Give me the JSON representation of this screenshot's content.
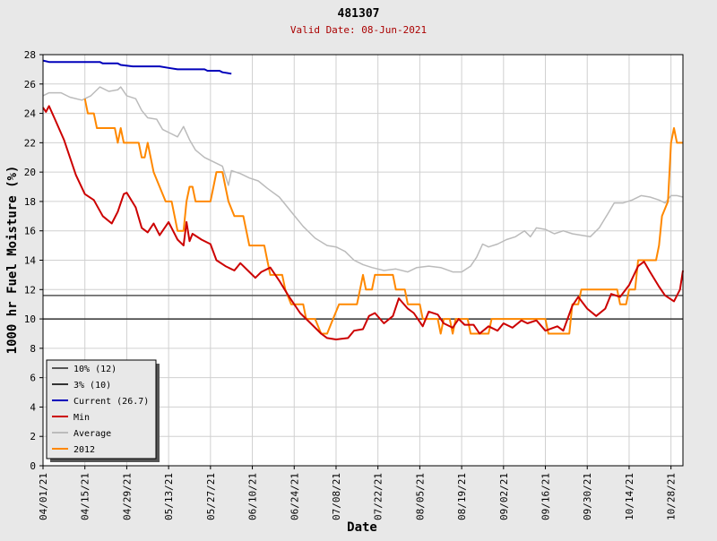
{
  "chart_data": {
    "type": "line",
    "title": "481307",
    "subtitle": "Valid Date: 08-Jun-2021",
    "xlabel": "Date",
    "ylabel": "1000 hr Fuel Moisture (%)",
    "x_tick_labels": [
      "04/01/21",
      "04/15/21",
      "04/29/21",
      "05/13/21",
      "05/27/21",
      "06/10/21",
      "06/24/21",
      "07/08/21",
      "07/22/21",
      "08/05/21",
      "08/19/21",
      "09/02/21",
      "09/16/21",
      "09/30/21",
      "10/14/21",
      "10/28/21"
    ],
    "y_ticks": [
      0,
      2,
      4,
      6,
      8,
      10,
      12,
      14,
      16,
      18,
      20,
      22,
      24,
      26,
      28
    ],
    "ylim": [
      0,
      28
    ],
    "x_range_dates": [
      "04/01/21",
      "11/01/21"
    ],
    "grid": true,
    "legend_position": "bottom-left",
    "reference_lines": [
      {
        "name": "10% (12)",
        "value": 11.6,
        "color": "#555555"
      },
      {
        "name": "3% (10)",
        "value": 10.0,
        "color": "#333333"
      }
    ],
    "series": [
      {
        "name": "Current (26.7)",
        "color": "#0000bb",
        "points": [
          [
            "04/01/21",
            27.6
          ],
          [
            "04/03/21",
            27.5
          ],
          [
            "04/20/21",
            27.5
          ],
          [
            "04/21/21",
            27.4
          ],
          [
            "04/26/21",
            27.4
          ],
          [
            "04/27/21",
            27.3
          ],
          [
            "05/01/21",
            27.2
          ],
          [
            "05/10/21",
            27.2
          ],
          [
            "05/13/21",
            27.1
          ],
          [
            "05/16/21",
            27.0
          ],
          [
            "05/25/21",
            27.0
          ],
          [
            "05/26/21",
            26.9
          ],
          [
            "05/30/21",
            26.9
          ],
          [
            "05/31/21",
            26.8
          ],
          [
            "06/03/21",
            26.7
          ]
        ]
      },
      {
        "name": "Min",
        "color": "#cc0000",
        "points": [
          [
            "04/01/21",
            24.4
          ],
          [
            "04/02/21",
            24.1
          ],
          [
            "04/03/21",
            24.5
          ],
          [
            "04/05/21",
            23.6
          ],
          [
            "04/08/21",
            22.2
          ],
          [
            "04/12/21",
            19.8
          ],
          [
            "04/15/21",
            18.5
          ],
          [
            "04/18/21",
            18.1
          ],
          [
            "04/21/21",
            17.0
          ],
          [
            "04/24/21",
            16.5
          ],
          [
            "04/26/21",
            17.3
          ],
          [
            "04/28/21",
            18.5
          ],
          [
            "04/29/21",
            18.6
          ],
          [
            "05/02/21",
            17.6
          ],
          [
            "05/04/21",
            16.2
          ],
          [
            "05/06/21",
            15.9
          ],
          [
            "05/08/21",
            16.5
          ],
          [
            "05/10/21",
            15.7
          ],
          [
            "05/13/21",
            16.6
          ],
          [
            "05/16/21",
            15.4
          ],
          [
            "05/18/21",
            15.0
          ],
          [
            "05/19/21",
            16.6
          ],
          [
            "05/20/21",
            15.3
          ],
          [
            "05/21/21",
            15.8
          ],
          [
            "05/24/21",
            15.4
          ],
          [
            "05/27/21",
            15.1
          ],
          [
            "05/29/21",
            14.0
          ],
          [
            "06/01/21",
            13.6
          ],
          [
            "06/04/21",
            13.3
          ],
          [
            "06/06/21",
            13.8
          ],
          [
            "06/09/21",
            13.2
          ],
          [
            "06/11/21",
            12.8
          ],
          [
            "06/13/21",
            13.2
          ],
          [
            "06/16/21",
            13.5
          ],
          [
            "06/19/21",
            12.6
          ],
          [
            "06/22/21",
            11.6
          ],
          [
            "06/26/21",
            10.4
          ],
          [
            "06/30/21",
            9.6
          ],
          [
            "07/03/21",
            9.0
          ],
          [
            "07/05/21",
            8.7
          ],
          [
            "07/08/21",
            8.6
          ],
          [
            "07/12/21",
            8.7
          ],
          [
            "07/14/21",
            9.2
          ],
          [
            "07/17/21",
            9.3
          ],
          [
            "07/19/21",
            10.2
          ],
          [
            "07/21/21",
            10.4
          ],
          [
            "07/24/21",
            9.7
          ],
          [
            "07/27/21",
            10.2
          ],
          [
            "07/29/21",
            11.4
          ],
          [
            "08/01/21",
            10.7
          ],
          [
            "08/03/21",
            10.4
          ],
          [
            "08/06/21",
            9.5
          ],
          [
            "08/08/21",
            10.5
          ],
          [
            "08/11/21",
            10.3
          ],
          [
            "08/13/21",
            9.7
          ],
          [
            "08/16/21",
            9.4
          ],
          [
            "08/18/21",
            10.0
          ],
          [
            "08/20/21",
            9.6
          ],
          [
            "08/23/21",
            9.6
          ],
          [
            "08/25/21",
            9.0
          ],
          [
            "08/28/21",
            9.5
          ],
          [
            "08/31/21",
            9.2
          ],
          [
            "09/02/21",
            9.7
          ],
          [
            "09/05/21",
            9.4
          ],
          [
            "09/08/21",
            9.9
          ],
          [
            "09/10/21",
            9.7
          ],
          [
            "09/13/21",
            9.9
          ],
          [
            "09/16/21",
            9.2
          ],
          [
            "09/20/21",
            9.5
          ],
          [
            "09/22/21",
            9.2
          ],
          [
            "09/25/21",
            10.9
          ],
          [
            "09/27/21",
            11.5
          ],
          [
            "09/30/21",
            10.7
          ],
          [
            "10/03/21",
            10.2
          ],
          [
            "10/06/21",
            10.7
          ],
          [
            "10/08/21",
            11.7
          ],
          [
            "10/11/21",
            11.5
          ],
          [
            "10/14/21",
            12.3
          ],
          [
            "10/17/21",
            13.6
          ],
          [
            "10/19/21",
            13.9
          ],
          [
            "10/21/21",
            13.2
          ],
          [
            "10/24/21",
            12.2
          ],
          [
            "10/26/21",
            11.6
          ],
          [
            "10/29/21",
            11.2
          ],
          [
            "10/31/21",
            12.0
          ],
          [
            "11/01/21",
            13.3
          ]
        ]
      },
      {
        "name": "Average",
        "color": "#bbbbbb",
        "points": [
          [
            "04/01/21",
            25.2
          ],
          [
            "04/03/21",
            25.4
          ],
          [
            "04/07/21",
            25.4
          ],
          [
            "04/10/21",
            25.1
          ],
          [
            "04/14/21",
            24.9
          ],
          [
            "04/17/21",
            25.2
          ],
          [
            "04/20/21",
            25.8
          ],
          [
            "04/23/21",
            25.5
          ],
          [
            "04/26/21",
            25.6
          ],
          [
            "04/27/21",
            25.8
          ],
          [
            "04/29/21",
            25.2
          ],
          [
            "05/02/21",
            25.0
          ],
          [
            "05/04/21",
            24.2
          ],
          [
            "05/06/21",
            23.7
          ],
          [
            "05/09/21",
            23.6
          ],
          [
            "05/11/21",
            22.9
          ],
          [
            "05/14/21",
            22.6
          ],
          [
            "05/16/21",
            22.4
          ],
          [
            "05/18/21",
            23.1
          ],
          [
            "05/20/21",
            22.2
          ],
          [
            "05/22/21",
            21.5
          ],
          [
            "05/25/21",
            21.0
          ],
          [
            "05/28/21",
            20.7
          ],
          [
            "05/31/21",
            20.4
          ],
          [
            "06/02/21",
            19.1
          ],
          [
            "06/03/21",
            20.1
          ],
          [
            "06/06/21",
            19.9
          ],
          [
            "06/09/21",
            19.6
          ],
          [
            "06/12/21",
            19.4
          ],
          [
            "06/15/21",
            18.9
          ],
          [
            "06/19/21",
            18.3
          ],
          [
            "06/23/21",
            17.3
          ],
          [
            "06/27/21",
            16.3
          ],
          [
            "07/01/21",
            15.5
          ],
          [
            "07/05/21",
            15.0
          ],
          [
            "07/08/21",
            14.9
          ],
          [
            "07/11/21",
            14.6
          ],
          [
            "07/14/21",
            14.0
          ],
          [
            "07/17/21",
            13.7
          ],
          [
            "07/20/21",
            13.5
          ],
          [
            "07/24/21",
            13.3
          ],
          [
            "07/28/21",
            13.4
          ],
          [
            "08/01/21",
            13.2
          ],
          [
            "08/04/21",
            13.5
          ],
          [
            "08/08/21",
            13.6
          ],
          [
            "08/12/21",
            13.5
          ],
          [
            "08/16/21",
            13.2
          ],
          [
            "08/19/21",
            13.2
          ],
          [
            "08/22/21",
            13.6
          ],
          [
            "08/24/21",
            14.2
          ],
          [
            "08/26/21",
            15.1
          ],
          [
            "08/28/21",
            14.9
          ],
          [
            "08/31/21",
            15.1
          ],
          [
            "09/03/21",
            15.4
          ],
          [
            "09/06/21",
            15.6
          ],
          [
            "09/09/21",
            16.0
          ],
          [
            "09/11/21",
            15.6
          ],
          [
            "09/13/21",
            16.2
          ],
          [
            "09/16/21",
            16.1
          ],
          [
            "09/19/21",
            15.8
          ],
          [
            "09/22/21",
            16.0
          ],
          [
            "09/25/21",
            15.8
          ],
          [
            "09/28/21",
            15.7
          ],
          [
            "10/01/21",
            15.6
          ],
          [
            "10/04/21",
            16.2
          ],
          [
            "10/07/21",
            17.2
          ],
          [
            "10/09/21",
            17.9
          ],
          [
            "10/12/21",
            17.9
          ],
          [
            "10/15/21",
            18.1
          ],
          [
            "10/18/21",
            18.4
          ],
          [
            "10/21/21",
            18.3
          ],
          [
            "10/24/21",
            18.1
          ],
          [
            "10/26/21",
            17.9
          ],
          [
            "10/28/21",
            18.4
          ],
          [
            "10/30/21",
            18.4
          ],
          [
            "11/01/21",
            18.3
          ]
        ]
      },
      {
        "name": "2012",
        "color": "#ff8800",
        "points": [
          [
            "04/15/21",
            25.0
          ],
          [
            "04/16/21",
            24.0
          ],
          [
            "04/18/21",
            24.0
          ],
          [
            "04/19/21",
            23.0
          ],
          [
            "04/25/21",
            23.0
          ],
          [
            "04/26/21",
            22.0
          ],
          [
            "04/27/21",
            23.0
          ],
          [
            "04/28/21",
            22.0
          ],
          [
            "05/03/21",
            22.0
          ],
          [
            "05/04/21",
            21.0
          ],
          [
            "05/05/21",
            21.0
          ],
          [
            "05/06/21",
            22.0
          ],
          [
            "05/07/21",
            21.0
          ],
          [
            "05/08/21",
            20.0
          ],
          [
            "05/10/21",
            19.0
          ],
          [
            "05/12/21",
            18.0
          ],
          [
            "05/14/21",
            18.0
          ],
          [
            "05/15/21",
            17.0
          ],
          [
            "05/16/21",
            16.0
          ],
          [
            "05/18/21",
            16.0
          ],
          [
            "05/19/21",
            18.0
          ],
          [
            "05/20/21",
            19.0
          ],
          [
            "05/21/21",
            19.0
          ],
          [
            "05/22/21",
            18.0
          ],
          [
            "05/27/21",
            18.0
          ],
          [
            "05/28/21",
            19.0
          ],
          [
            "05/29/21",
            20.0
          ],
          [
            "05/31/21",
            20.0
          ],
          [
            "06/01/21",
            19.0
          ],
          [
            "06/02/21",
            18.0
          ],
          [
            "06/04/21",
            17.0
          ],
          [
            "06/07/21",
            17.0
          ],
          [
            "06/09/21",
            15.0
          ],
          [
            "06/14/21",
            15.0
          ],
          [
            "06/15/21",
            14.0
          ],
          [
            "06/16/21",
            13.0
          ],
          [
            "06/20/21",
            13.0
          ],
          [
            "06/21/21",
            12.0
          ],
          [
            "06/23/21",
            11.0
          ],
          [
            "06/27/21",
            11.0
          ],
          [
            "06/28/21",
            10.0
          ],
          [
            "07/01/21",
            10.0
          ],
          [
            "07/03/21",
            9.0
          ],
          [
            "07/05/21",
            9.0
          ],
          [
            "07/07/21",
            10.0
          ],
          [
            "07/09/21",
            11.0
          ],
          [
            "07/15/21",
            11.0
          ],
          [
            "07/16/21",
            12.0
          ],
          [
            "07/17/21",
            13.0
          ],
          [
            "07/18/21",
            12.0
          ],
          [
            "07/20/21",
            12.0
          ],
          [
            "07/21/21",
            13.0
          ],
          [
            "07/27/21",
            13.0
          ],
          [
            "07/28/21",
            12.0
          ],
          [
            "07/31/21",
            12.0
          ],
          [
            "08/01/21",
            11.0
          ],
          [
            "08/05/21",
            11.0
          ],
          [
            "08/06/21",
            10.0
          ],
          [
            "08/11/21",
            10.0
          ],
          [
            "08/12/21",
            9.0
          ],
          [
            "08/13/21",
            10.0
          ],
          [
            "08/15/21",
            10.0
          ],
          [
            "08/16/21",
            9.0
          ],
          [
            "08/17/21",
            10.0
          ],
          [
            "08/21/21",
            10.0
          ],
          [
            "08/22/21",
            9.0
          ],
          [
            "08/28/21",
            9.0
          ],
          [
            "08/29/21",
            10.0
          ],
          [
            "09/16/21",
            10.0
          ],
          [
            "09/17/21",
            9.0
          ],
          [
            "09/24/21",
            9.0
          ],
          [
            "09/25/21",
            11.0
          ],
          [
            "09/27/21",
            11.0
          ],
          [
            "09/28/21",
            12.0
          ],
          [
            "10/10/21",
            12.0
          ],
          [
            "10/11/21",
            11.0
          ],
          [
            "10/13/21",
            11.0
          ],
          [
            "10/14/21",
            12.0
          ],
          [
            "10/16/21",
            12.0
          ],
          [
            "10/17/21",
            14.0
          ],
          [
            "10/23/21",
            14.0
          ],
          [
            "10/24/21",
            15.0
          ],
          [
            "10/25/21",
            17.0
          ],
          [
            "10/27/21",
            18.0
          ],
          [
            "10/28/21",
            22.0
          ],
          [
            "10/29/21",
            23.0
          ],
          [
            "10/30/21",
            22.0
          ],
          [
            "11/01/21",
            22.0
          ]
        ]
      }
    ]
  }
}
